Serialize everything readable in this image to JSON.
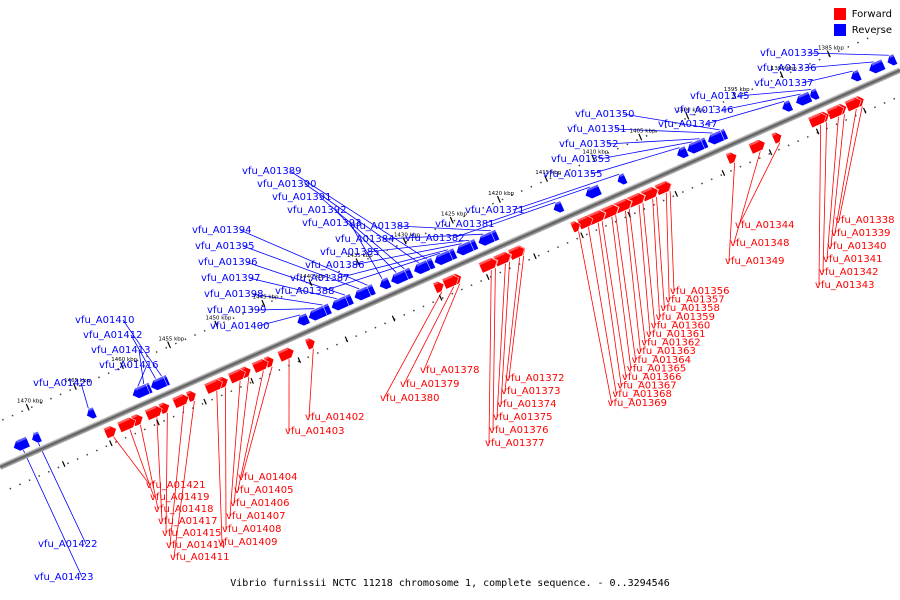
{
  "legend": {
    "forward_label": "Forward",
    "reverse_label": "Reverse",
    "forward_color": "#ff0000",
    "reverse_color": "#0000ff"
  },
  "caption": "Vibrio furnissii NCTC 11218 chromosome 1, complete sequence. - 0..3294546",
  "ticks": [
    "1385 kbp",
    "1390 kbp",
    "1395 kbp",
    "1400 kbp",
    "1405 kbp",
    "1410 kbp",
    "1415 kbp",
    "1420 kbp",
    "1425 kbp",
    "1430 kbp",
    "1435 kbp",
    "1440 kbp",
    "1445 kbp",
    "1450 kbp",
    "1455 kbp",
    "1460 kbp",
    "1465 kbp",
    "1470 kbp"
  ],
  "reverse_genes": [
    "vfu_A01335",
    "vfu_A01336",
    "vfu_A01337",
    "vfu_A01345",
    "vfu_A01346",
    "vfu_A01347",
    "vfu_A01350",
    "vfu_A01351",
    "vfu_A01352",
    "vfu_A01353",
    "vfu_A01355",
    "vfu_A01371",
    "vfu_A01381",
    "vfu_A01382",
    "vfu_A01383",
    "vfu_A01384",
    "vfu_A01385",
    "vfu_A01386",
    "vfu_A01387",
    "vfu_A01388",
    "vfu_A01389",
    "vfu_A01390",
    "vfu_A01391",
    "vfu_A01392",
    "vfu_A01393",
    "vfu_A01394",
    "vfu_A01395",
    "vfu_A01396",
    "vfu_A01397",
    "vfu_A01398",
    "vfu_A01399",
    "vfu_A01400",
    "vfu_A01410",
    "vfu_A01412",
    "vfu_A01413",
    "vfu_A01416",
    "vfu_A01420",
    "vfu_A01422",
    "vfu_A01423"
  ],
  "forward_genes": [
    "vfu_A01338",
    "vfu_A01339",
    "vfu_A01340",
    "vfu_A01341",
    "vfu_A01342",
    "vfu_A01343",
    "vfu_A01344",
    "vfu_A01348",
    "vfu_A01349",
    "vfu_A01356",
    "vfu_A01357",
    "vfu_A01358",
    "vfu_A01359",
    "vfu_A01360",
    "vfu_A01361",
    "vfu_A01362",
    "vfu_A01363",
    "vfu_A01364",
    "vfu_A01365",
    "vfu_A01366",
    "vfu_A01367",
    "vfu_A01368",
    "vfu_A01369",
    "vfu_A01372",
    "vfu_A01373",
    "vfu_A01374",
    "vfu_A01375",
    "vfu_A01376",
    "vfu_A01377",
    "vfu_A01378",
    "vfu_A01379",
    "vfu_A01380",
    "vfu_A01402",
    "vfu_A01403",
    "vfu_A01404",
    "vfu_A01405",
    "vfu_A01406",
    "vfu_A01407",
    "vfu_A01408",
    "vfu_A01409",
    "vfu_A01411",
    "vfu_A01414",
    "vfu_A01415",
    "vfu_A01417",
    "vfu_A01418",
    "vfu_A01419",
    "vfu_A01421"
  ]
}
